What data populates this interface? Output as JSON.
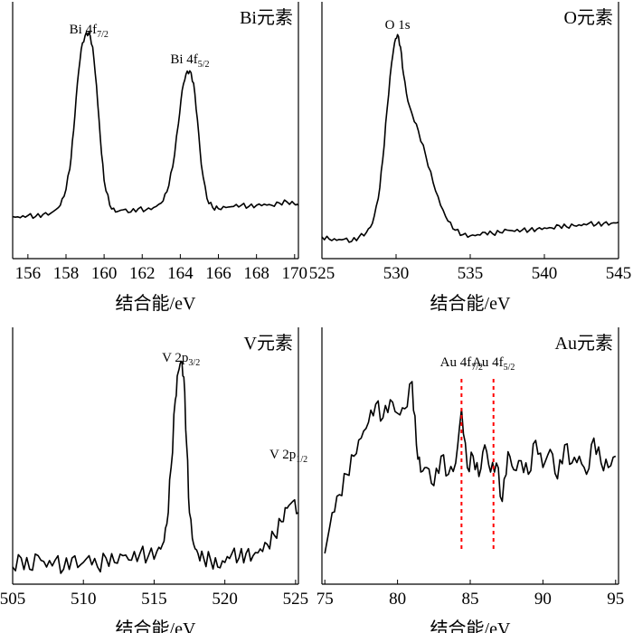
{
  "figure": {
    "background": "#ffffff",
    "line_color": "#000000",
    "marker_color": "#ff0000"
  },
  "chart_data": [
    {
      "type": "line",
      "title": "Bi元素",
      "xlabel": "结合能/eV",
      "ylabel": "",
      "xlim": [
        155.2,
        170.2
      ],
      "ylim": [
        0,
        1.0
      ],
      "xticks": [
        "156",
        "158",
        "160",
        "162",
        "164",
        "166",
        "168",
        "170"
      ],
      "annotations": [
        {
          "text": "Bi 4f",
          "sub": "7/2",
          "x": 159.2
        },
        {
          "text": "Bi 4f",
          "sub": "5/2",
          "x": 164.5
        }
      ],
      "series": [
        {
          "x": [
            155.2,
            155.6,
            156.0,
            156.4,
            156.8,
            157.2,
            157.6,
            157.9,
            158.2,
            158.4,
            158.6,
            158.8,
            159.0,
            159.2,
            159.4,
            159.6,
            159.8,
            160.0,
            160.3,
            160.6,
            161.0,
            161.4,
            161.8,
            162.2,
            162.6,
            163.0,
            163.3,
            163.6,
            163.9,
            164.1,
            164.3,
            164.5,
            164.7,
            164.9,
            165.1,
            165.4,
            165.7,
            166.0,
            166.4,
            166.8,
            167.2,
            167.6,
            168.0,
            168.4,
            168.8,
            169.2,
            169.6,
            170.0,
            170.2
          ],
          "y": [
            0.17,
            0.165,
            0.175,
            0.17,
            0.18,
            0.185,
            0.21,
            0.26,
            0.38,
            0.55,
            0.76,
            0.91,
            0.97,
            0.985,
            0.92,
            0.75,
            0.52,
            0.33,
            0.22,
            0.19,
            0.2,
            0.19,
            0.205,
            0.2,
            0.21,
            0.23,
            0.28,
            0.39,
            0.58,
            0.73,
            0.8,
            0.815,
            0.76,
            0.6,
            0.4,
            0.25,
            0.21,
            0.205,
            0.21,
            0.215,
            0.22,
            0.215,
            0.22,
            0.225,
            0.22,
            0.23,
            0.235,
            0.225,
            0.22
          ]
        }
      ]
    },
    {
      "type": "line",
      "title": "O元素",
      "xlabel": "结合能/eV",
      "ylabel": "",
      "xlim": [
        525,
        545
      ],
      "ylim": [
        0,
        1.0
      ],
      "xticks": [
        "525",
        "530",
        "535",
        "540",
        "545"
      ],
      "annotations": [
        {
          "text": "O 1s",
          "sub": "",
          "x": 530.1
        }
      ],
      "series": [
        {
          "x": [
            525.0,
            525.5,
            526.0,
            526.5,
            527.0,
            527.5,
            528.0,
            528.4,
            528.8,
            529.1,
            529.4,
            529.7,
            529.9,
            530.1,
            530.3,
            530.5,
            530.8,
            531.1,
            531.5,
            532.0,
            532.5,
            533.0,
            533.5,
            534.0,
            534.5,
            535.0,
            535.5,
            536.0,
            536.5,
            537.0,
            537.5,
            538.0,
            538.5,
            539.0,
            539.5,
            540.0,
            540.5,
            541.0,
            541.5,
            542.0,
            542.5,
            543.0,
            543.5,
            544.0,
            544.5,
            545.0
          ],
          "y": [
            0.08,
            0.07,
            0.065,
            0.07,
            0.06,
            0.08,
            0.1,
            0.14,
            0.25,
            0.42,
            0.65,
            0.85,
            0.94,
            0.975,
            0.92,
            0.8,
            0.68,
            0.62,
            0.55,
            0.44,
            0.32,
            0.22,
            0.15,
            0.11,
            0.09,
            0.085,
            0.09,
            0.1,
            0.095,
            0.1,
            0.11,
            0.105,
            0.11,
            0.11,
            0.115,
            0.12,
            0.12,
            0.13,
            0.125,
            0.13,
            0.13,
            0.14,
            0.135,
            0.14,
            0.14,
            0.145
          ]
        }
      ]
    },
    {
      "type": "line",
      "title": "V元素",
      "xlabel": "结合能/eV",
      "ylabel": "",
      "xlim": [
        505,
        525.2
      ],
      "ylim": [
        0,
        1.0
      ],
      "xticks": [
        "505",
        "510",
        "515",
        "520",
        "525"
      ],
      "annotations": [
        {
          "text": "V 2p",
          "sub": "3/2",
          "x": 516.9
        },
        {
          "text": "V 2p",
          "sub": "1/2",
          "x": 524.5
        }
      ],
      "series": [
        {
          "x": [
            505.0,
            505.6,
            506.2,
            506.8,
            507.4,
            508.0,
            508.6,
            509.2,
            509.8,
            510.4,
            511.0,
            511.6,
            512.2,
            512.8,
            513.4,
            514.0,
            514.6,
            515.2,
            515.6,
            515.9,
            516.2,
            516.5,
            516.7,
            516.9,
            517.1,
            517.3,
            517.5,
            517.8,
            518.1,
            518.5,
            519.0,
            519.5,
            520.0,
            520.5,
            521.0,
            521.5,
            522.0,
            522.5,
            523.0,
            523.5,
            524.0,
            524.4,
            524.8,
            525.2
          ],
          "y": [
            0.06,
            0.1,
            0.05,
            0.11,
            0.06,
            0.09,
            0.05,
            0.1,
            0.07,
            0.11,
            0.06,
            0.1,
            0.08,
            0.11,
            0.09,
            0.12,
            0.11,
            0.13,
            0.16,
            0.25,
            0.5,
            0.8,
            0.92,
            0.97,
            0.9,
            0.6,
            0.3,
            0.16,
            0.12,
            0.1,
            0.09,
            0.06,
            0.08,
            0.12,
            0.1,
            0.12,
            0.11,
            0.14,
            0.16,
            0.2,
            0.26,
            0.32,
            0.35,
            0.3
          ]
        }
      ]
    },
    {
      "type": "line",
      "title": "Au元素",
      "xlabel": "结合能/eV",
      "ylabel": "",
      "xlim": [
        74.8,
        95.2
      ],
      "ylim": [
        0,
        1.0
      ],
      "xticks": [
        "75",
        "80",
        "85",
        "90",
        "95"
      ],
      "annotations": [
        {
          "text": "Au 4f",
          "sub": "7/2",
          "x": 84.4
        },
        {
          "text": "Au 4f",
          "sub": "5/2",
          "x": 86.6
        }
      ],
      "series": [
        {
          "x": [
            75.0,
            75.5,
            76.0,
            76.5,
            77.0,
            77.5,
            78.0,
            78.5,
            79.0,
            79.5,
            80.0,
            80.5,
            81.0,
            81.3,
            81.6,
            82.0,
            82.5,
            83.0,
            83.5,
            84.0,
            84.4,
            84.8,
            85.2,
            85.6,
            86.0,
            86.4,
            86.8,
            87.2,
            87.6,
            88.0,
            88.5,
            89.0,
            89.5,
            90.0,
            90.5,
            91.0,
            91.5,
            92.0,
            92.5,
            93.0,
            93.5,
            94.0,
            94.5,
            95.0
          ],
          "y": [
            0.12,
            0.3,
            0.38,
            0.47,
            0.55,
            0.63,
            0.7,
            0.78,
            0.72,
            0.8,
            0.74,
            0.76,
            0.88,
            0.6,
            0.48,
            0.5,
            0.42,
            0.55,
            0.47,
            0.52,
            0.76,
            0.5,
            0.55,
            0.46,
            0.6,
            0.48,
            0.52,
            0.35,
            0.57,
            0.49,
            0.53,
            0.47,
            0.62,
            0.5,
            0.58,
            0.45,
            0.6,
            0.52,
            0.55,
            0.47,
            0.63,
            0.52,
            0.5,
            0.55
          ]
        }
      ]
    }
  ]
}
